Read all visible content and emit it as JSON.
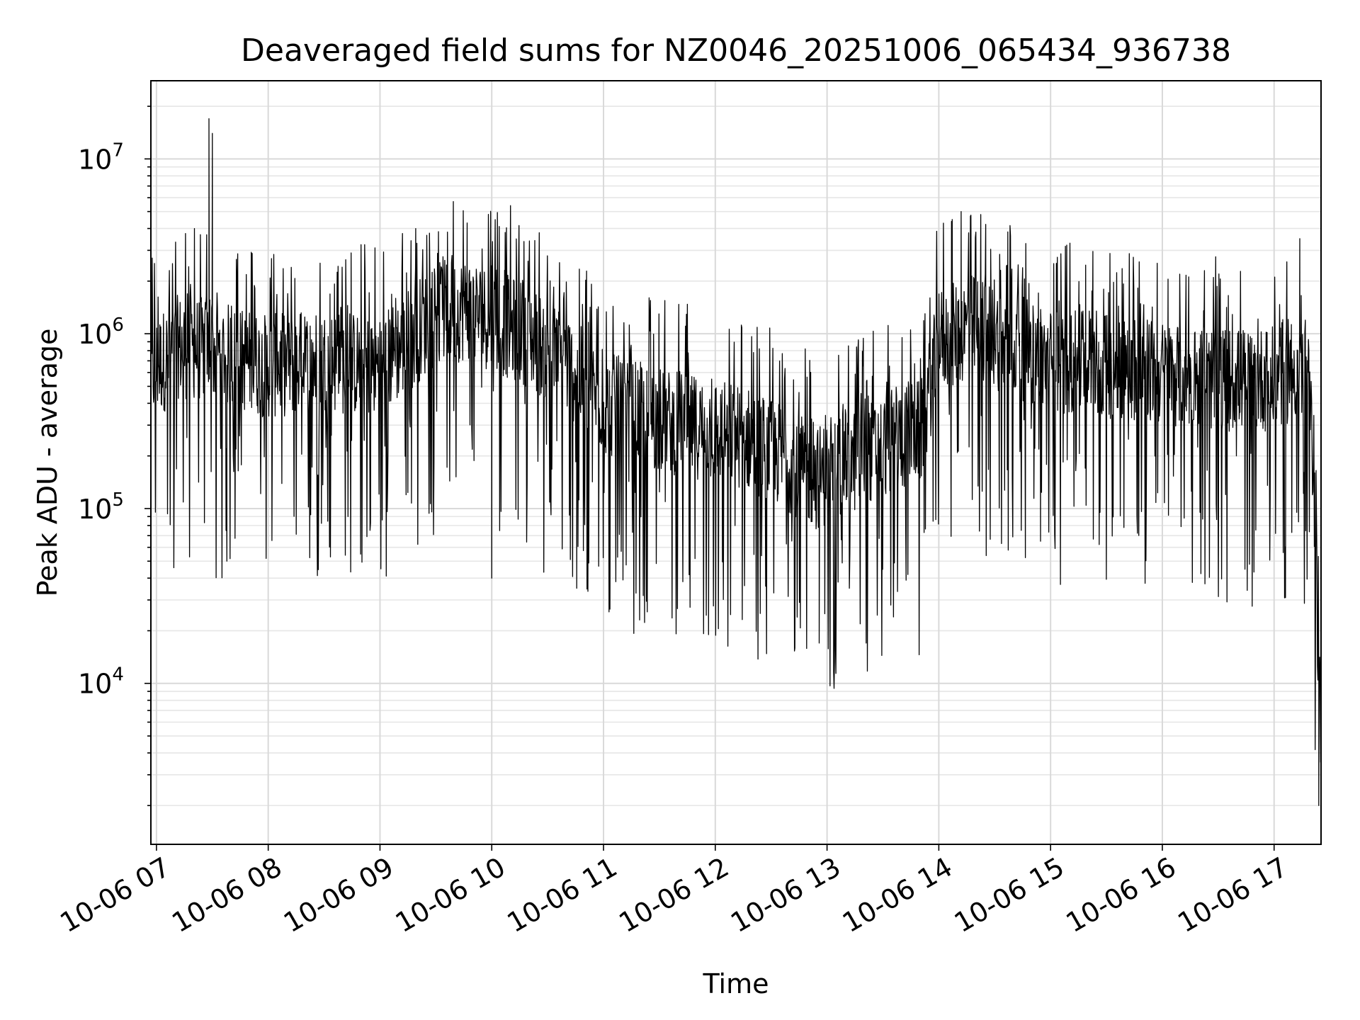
{
  "chart_data": {
    "type": "line",
    "title": "Deaveraged field sums for NZ0046_20251006_065434_936738",
    "xlabel": "Time",
    "ylabel": "Peak ADU - average",
    "yscale": "log",
    "ylim": [
      1200,
      28000000
    ],
    "xlim_hours": [
      6.95,
      17.42
    ],
    "x_tick_labels": [
      "10-06 07",
      "10-06 08",
      "10-06 09",
      "10-06 10",
      "10-06 11",
      "10-06 12",
      "10-06 13",
      "10-06 14",
      "10-06 15",
      "10-06 16",
      "10-06 17"
    ],
    "x_tick_hours": [
      7,
      8,
      9,
      10,
      11,
      12,
      13,
      14,
      15,
      16,
      17
    ],
    "y_tick_labels": [
      {
        "base": "10",
        "exp": "4",
        "value": 10000
      },
      {
        "base": "10",
        "exp": "5",
        "value": 100000
      },
      {
        "base": "10",
        "exp": "6",
        "value": 1000000
      },
      {
        "base": "10",
        "exp": "7",
        "value": 10000000
      }
    ],
    "grid": true,
    "series": [
      {
        "name": "field sums",
        "color": "#000000",
        "baseline_x_hours": [
          6.95,
          7.2,
          7.5,
          7.8,
          8.0,
          8.5,
          9.0,
          9.5,
          9.8,
          10.0,
          10.3,
          10.7,
          11.0,
          11.5,
          12.0,
          12.3,
          12.6,
          12.9,
          13.2,
          13.5,
          13.85,
          14.0,
          14.3,
          14.6,
          15.0,
          15.5,
          16.0,
          16.5,
          17.0,
          17.2,
          17.3,
          17.35,
          17.42
        ],
        "baseline_y": [
          600000,
          850000,
          800000,
          700000,
          650000,
          700000,
          650000,
          1300000,
          1400000,
          1200000,
          1000000,
          650000,
          400000,
          320000,
          280000,
          250000,
          200000,
          150000,
          180000,
          230000,
          280000,
          900000,
          1100000,
          900000,
          700000,
          650000,
          600000,
          550000,
          550000,
          650000,
          500000,
          200000,
          4000
        ],
        "spikes": [
          {
            "x": 7.47,
            "y": 17000000
          },
          {
            "x": 7.5,
            "y": 14000000
          },
          {
            "x": 7.34,
            "y": 4000000
          },
          {
            "x": 9.32,
            "y": 4000000
          },
          {
            "x": 9.78,
            "y": 4300000
          },
          {
            "x": 10.12,
            "y": 3800000
          },
          {
            "x": 14.2,
            "y": 5000000
          },
          {
            "x": 14.12,
            "y": 4500000
          },
          {
            "x": 17.23,
            "y": 3500000
          },
          {
            "x": 10.0,
            "y": 40000
          },
          {
            "x": 10.76,
            "y": 35000
          },
          {
            "x": 11.94,
            "y": 19000
          },
          {
            "x": 12.93,
            "y": 17000
          },
          {
            "x": 12.98,
            "y": 25000
          },
          {
            "x": 13.35,
            "y": 17000
          },
          {
            "x": 7.63,
            "y": 50000
          },
          {
            "x": 14.91,
            "y": 65000
          },
          {
            "x": 17.4,
            "y": 2000
          }
        ]
      }
    ]
  }
}
